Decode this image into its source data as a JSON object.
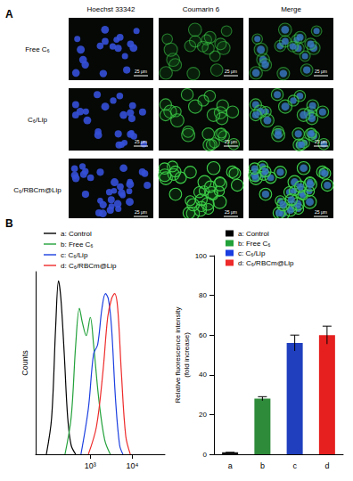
{
  "panel_a": {
    "label": "A",
    "columns": [
      "Hoechst 33342",
      "Coumarin 6",
      "Merge"
    ],
    "rows": [
      "Free C₆",
      "C₆/Lip",
      "C₆/RBCm@Lip"
    ],
    "scale_bar": "25 μm"
  },
  "panel_b": {
    "label": "B"
  },
  "chart_data": [
    {
      "type": "line",
      "y_label": "Counts",
      "log": "x",
      "xlim": [
        50,
        60000
      ],
      "xticks": [
        {
          "value": 1000,
          "label": "10³"
        },
        {
          "value": 10000,
          "label": "10⁴"
        }
      ],
      "ylim": [
        0,
        100
      ],
      "tick_labels": "x",
      "grid": false,
      "legend": "top-left",
      "series": [
        {
          "name": "a: Control",
          "color": "#000000",
          "x": [
            90,
            120,
            150,
            175,
            200,
            240,
            290,
            350,
            450
          ],
          "values": [
            0,
            20,
            70,
            95,
            85,
            55,
            20,
            5,
            0
          ]
        },
        {
          "name": "b: Free C₆",
          "color": "#22a13a",
          "x": [
            250,
            350,
            450,
            550,
            650,
            800,
            1000,
            1200,
            1600,
            2200,
            3000
          ],
          "values": [
            0,
            20,
            60,
            80,
            72,
            65,
            75,
            60,
            30,
            8,
            0
          ]
        },
        {
          "name": "c: C₆/Lip",
          "color": "#1a3ee0",
          "x": [
            600,
            900,
            1200,
            1500,
            1900,
            2300,
            2700,
            3200,
            4000,
            5000,
            6000
          ],
          "values": [
            0,
            25,
            55,
            60,
            80,
            88,
            85,
            70,
            30,
            5,
            0
          ]
        },
        {
          "name": "d: C₆/RBCm@Lip",
          "color": "#ee2a2a",
          "x": [
            900,
            1400,
            2000,
            2600,
            3200,
            3800,
            4500,
            5500,
            7000,
            9000
          ],
          "values": [
            0,
            15,
            45,
            75,
            85,
            88,
            80,
            45,
            10,
            0
          ]
        }
      ]
    },
    {
      "type": "bar",
      "y_label": [
        "Relative fluorescence intensity",
        "(fold increase)"
      ],
      "categories": [
        "a",
        "b",
        "c",
        "d"
      ],
      "ylim": [
        0,
        100
      ],
      "yticks": [
        0,
        20,
        40,
        60,
        80,
        100
      ],
      "grid": false,
      "legend": "top-left",
      "series": [
        {
          "name": "a: Control",
          "color": "#111111",
          "values": [
            1,
            null,
            null,
            null
          ],
          "errors": [
            0,
            null,
            null,
            null
          ]
        },
        {
          "name": "b: Free C₆",
          "color": "#2e8b3a",
          "values": [
            null,
            28,
            null,
            null
          ],
          "errors": [
            null,
            1,
            null,
            null
          ]
        },
        {
          "name": "c: C₆/Lip",
          "color": "#1f3fbf",
          "values": [
            null,
            null,
            56,
            null
          ],
          "errors": [
            null,
            null,
            4,
            null
          ]
        },
        {
          "name": "d: C₆/RBCm@Lip",
          "color": "#e5201f",
          "values": [
            null,
            null,
            null,
            60
          ],
          "errors": [
            null,
            null,
            null,
            4.5
          ]
        }
      ]
    }
  ]
}
